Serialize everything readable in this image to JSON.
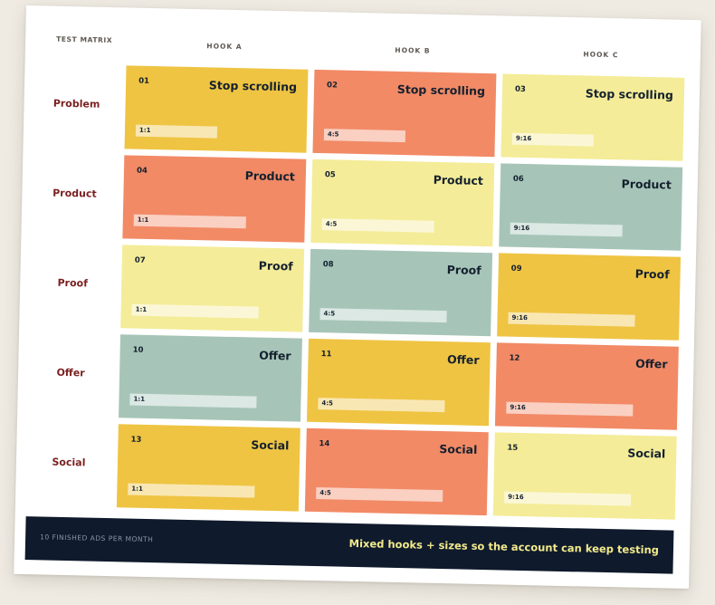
{
  "header": {
    "corner_label": "TEST MATRIX",
    "columns": [
      "HOOK A",
      "HOOK B",
      "HOOK C"
    ]
  },
  "rows": [
    "Problem",
    "Product",
    "Proof",
    "Offer",
    "Social"
  ],
  "colors": {
    "yellow": "#efc443",
    "coral": "#f28a66",
    "pale_yellow": "#f4ec98",
    "sage": "#a6c5b8",
    "label_red": "#7a1f1f",
    "footer_bg": "#0f1a2c",
    "footer_accent": "#f2ea8c"
  },
  "cells": [
    {
      "num": "01",
      "title": "Stop scrolling",
      "ratio": "1:1",
      "color": "#efc443",
      "bar": 0.45
    },
    {
      "num": "02",
      "title": "Stop scrolling",
      "ratio": "4:5",
      "color": "#f28a66",
      "bar": 0.45
    },
    {
      "num": "03",
      "title": "Stop scrolling",
      "ratio": "9:16",
      "color": "#f4ec98",
      "bar": 0.45
    },
    {
      "num": "04",
      "title": "Product",
      "ratio": "1:1",
      "color": "#f28a66",
      "bar": 0.62
    },
    {
      "num": "05",
      "title": "Product",
      "ratio": "4:5",
      "color": "#f4ec98",
      "bar": 0.62
    },
    {
      "num": "06",
      "title": "Product",
      "ratio": "9:16",
      "color": "#a6c5b8",
      "bar": 0.62
    },
    {
      "num": "07",
      "title": "Proof",
      "ratio": "1:1",
      "color": "#f4ec98",
      "bar": 0.7
    },
    {
      "num": "08",
      "title": "Proof",
      "ratio": "4:5",
      "color": "#a6c5b8",
      "bar": 0.7
    },
    {
      "num": "09",
      "title": "Proof",
      "ratio": "9:16",
      "color": "#efc443",
      "bar": 0.7
    },
    {
      "num": "10",
      "title": "Offer",
      "ratio": "1:1",
      "color": "#a6c5b8",
      "bar": 0.7
    },
    {
      "num": "11",
      "title": "Offer",
      "ratio": "4:5",
      "color": "#efc443",
      "bar": 0.7
    },
    {
      "num": "12",
      "title": "Offer",
      "ratio": "9:16",
      "color": "#f28a66",
      "bar": 0.7
    },
    {
      "num": "13",
      "title": "Social",
      "ratio": "1:1",
      "color": "#efc443",
      "bar": 0.7
    },
    {
      "num": "14",
      "title": "Social",
      "ratio": "4:5",
      "color": "#f28a66",
      "bar": 0.7
    },
    {
      "num": "15",
      "title": "Social",
      "ratio": "9:16",
      "color": "#f4ec98",
      "bar": 0.7
    }
  ],
  "footer": {
    "left": "10 FINISHED ADS PER MONTH",
    "right": "Mixed hooks + sizes so the account can keep testing"
  }
}
